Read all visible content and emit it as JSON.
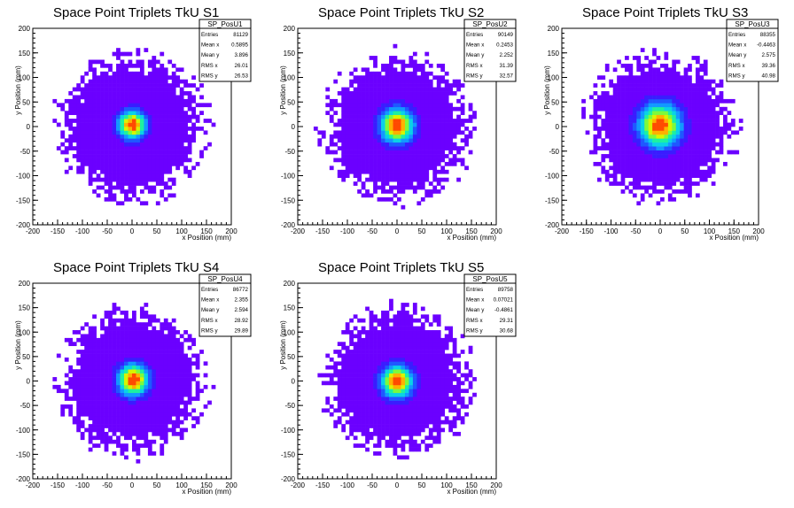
{
  "chart_data": [
    {
      "type": "heatmap",
      "title": "Space Point Triplets TkU S1",
      "xlabel": "x Position (mm)",
      "ylabel": "y Position (mm)",
      "xlim": [
        -200,
        200
      ],
      "ylim": [
        -200,
        200
      ],
      "xticks": [
        -200,
        -150,
        -100,
        -50,
        0,
        50,
        100,
        150,
        200
      ],
      "yticks": [
        -200,
        -150,
        -100,
        -50,
        0,
        50,
        100,
        150,
        200
      ],
      "stats": {
        "name": "SP_PosU1",
        "rows": [
          [
            "Entries",
            "81129"
          ],
          [
            "Mean x",
            "0.5895"
          ],
          [
            "Mean y",
            "3.896"
          ],
          [
            "RMS x",
            "26.01"
          ],
          [
            "RMS y",
            "26.53"
          ]
        ]
      },
      "distribution": {
        "mean_x": 0.5895,
        "mean_y": 3.896,
        "rms_x": 26.01,
        "rms_y": 26.53,
        "entries": 81129,
        "max_radius": 165
      }
    },
    {
      "type": "heatmap",
      "title": "Space Point Triplets TkU S2",
      "xlabel": "x Position (mm)",
      "ylabel": "y Position (mm)",
      "xlim": [
        -200,
        200
      ],
      "ylim": [
        -200,
        200
      ],
      "xticks": [
        -200,
        -150,
        -100,
        -50,
        0,
        50,
        100,
        150,
        200
      ],
      "yticks": [
        -200,
        -150,
        -100,
        -50,
        0,
        50,
        100,
        150,
        200
      ],
      "stats": {
        "name": "SP_PosU2",
        "rows": [
          [
            "Entries",
            "90149"
          ],
          [
            "Mean x",
            "0.2453"
          ],
          [
            "Mean y",
            "2.252"
          ],
          [
            "RMS x",
            "31.39"
          ],
          [
            "RMS y",
            "32.57"
          ]
        ]
      },
      "distribution": {
        "mean_x": 0.2453,
        "mean_y": 2.252,
        "rms_x": 31.39,
        "rms_y": 32.57,
        "entries": 90149,
        "max_radius": 165
      }
    },
    {
      "type": "heatmap",
      "title": "Space Point Triplets TkU S3",
      "xlabel": "x Position (mm)",
      "ylabel": "y Position (mm)",
      "xlim": [
        -200,
        200
      ],
      "ylim": [
        -200,
        200
      ],
      "xticks": [
        -200,
        -150,
        -100,
        -50,
        0,
        50,
        100,
        150,
        200
      ],
      "yticks": [
        -200,
        -150,
        -100,
        -50,
        0,
        50,
        100,
        150,
        200
      ],
      "stats": {
        "name": "SP_PosU3",
        "rows": [
          [
            "Entries",
            "88355"
          ],
          [
            "Mean x",
            "-0.4463"
          ],
          [
            "Mean y",
            "2.575"
          ],
          [
            "RMS x",
            "39.36"
          ],
          [
            "RMS y",
            "40.98"
          ]
        ]
      },
      "distribution": {
        "mean_x": -0.4463,
        "mean_y": 2.575,
        "rms_x": 39.36,
        "rms_y": 40.98,
        "entries": 88355,
        "max_radius": 165
      }
    },
    {
      "type": "heatmap",
      "title": "Space Point Triplets TkU S4",
      "xlabel": "x Position (mm)",
      "ylabel": "y Position (mm)",
      "xlim": [
        -200,
        200
      ],
      "ylim": [
        -200,
        200
      ],
      "xticks": [
        -200,
        -150,
        -100,
        -50,
        0,
        50,
        100,
        150,
        200
      ],
      "yticks": [
        -200,
        -150,
        -100,
        -50,
        0,
        50,
        100,
        150,
        200
      ],
      "stats": {
        "name": "SP_PosU4",
        "rows": [
          [
            "Entries",
            "86772"
          ],
          [
            "Mean x",
            "2.355"
          ],
          [
            "Mean y",
            "2.594"
          ],
          [
            "RMS x",
            "28.92"
          ],
          [
            "RMS y",
            "29.89"
          ]
        ]
      },
      "distribution": {
        "mean_x": 2.355,
        "mean_y": 2.594,
        "rms_x": 28.92,
        "rms_y": 29.89,
        "entries": 86772,
        "max_radius": 165
      }
    },
    {
      "type": "heatmap",
      "title": "Space Point Triplets TkU S5",
      "xlabel": "x Position (mm)",
      "ylabel": "y Position (mm)",
      "xlim": [
        -200,
        200
      ],
      "ylim": [
        -200,
        200
      ],
      "xticks": [
        -200,
        -150,
        -100,
        -50,
        0,
        50,
        100,
        150,
        200
      ],
      "yticks": [
        -200,
        -150,
        -100,
        -50,
        0,
        50,
        100,
        150,
        200
      ],
      "stats": {
        "name": "SP_PosU5",
        "rows": [
          [
            "Entries",
            "89758"
          ],
          [
            "Mean x",
            "0.07021"
          ],
          [
            "Mean y",
            "-0.4861"
          ],
          [
            "RMS x",
            "29.31"
          ],
          [
            "RMS y",
            "30.68"
          ]
        ]
      },
      "distribution": {
        "mean_x": 0.07021,
        "mean_y": -0.4861,
        "rms_x": 29.31,
        "rms_y": 30.68,
        "entries": 89758,
        "max_radius": 165
      }
    }
  ],
  "colors": {
    "palette": [
      "#6b00ff",
      "#3a1cff",
      "#1f58ff",
      "#1299ff",
      "#0ad2e6",
      "#1ef0a0",
      "#7dfa3c",
      "#d8f400",
      "#ffb000",
      "#ff4a00",
      "#ff0000"
    ],
    "axis": "#000000",
    "background": "#ffffff"
  }
}
